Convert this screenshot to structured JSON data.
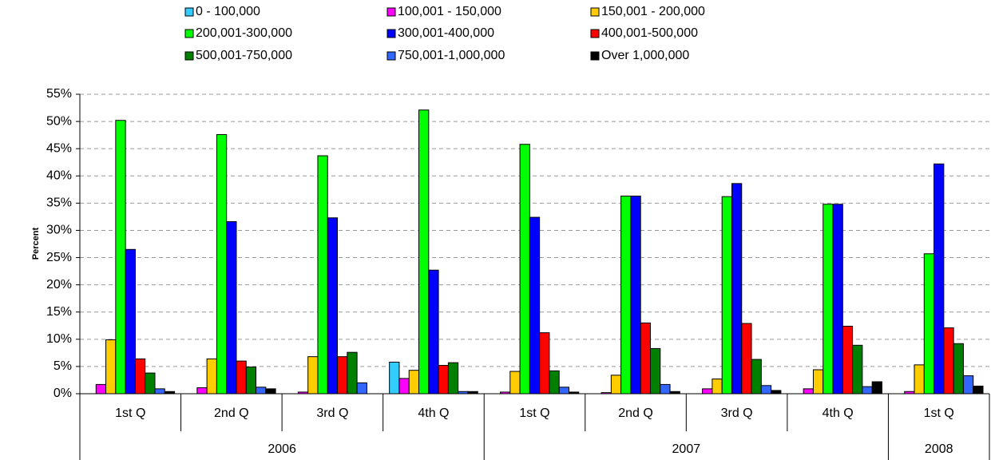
{
  "chart_data": {
    "type": "bar",
    "y_label": "Percent",
    "categories": [
      "1st Q",
      "2nd Q",
      "3rd Q",
      "4th Q",
      "1st Q",
      "2nd Q",
      "3rd Q",
      "4th Q",
      "1st Q"
    ],
    "category_groups": [
      "2006",
      "2006",
      "2006",
      "2006",
      "2007",
      "2007",
      "2007",
      "2007",
      "2008"
    ],
    "ylim": [
      0,
      55
    ],
    "yticks": [
      {
        "value": 0,
        "label": "0%"
      },
      {
        "value": 5,
        "label": "5%"
      },
      {
        "value": 10,
        "label": "10%"
      },
      {
        "value": 15,
        "label": "15%"
      },
      {
        "value": 20,
        "label": "20%"
      },
      {
        "value": 25,
        "label": "25%"
      },
      {
        "value": 30,
        "label": "30%"
      },
      {
        "value": 35,
        "label": "35%"
      },
      {
        "value": 40,
        "label": "40%"
      },
      {
        "value": 45,
        "label": "45%"
      },
      {
        "value": 50,
        "label": "50%"
      },
      {
        "value": 55,
        "label": "55%"
      }
    ],
    "grid": true,
    "legend": "top",
    "series": [
      {
        "name": "0 - 100,000",
        "color": "#33CCFF",
        "values": [
          0,
          0,
          0,
          5.8,
          0,
          0,
          0,
          0,
          0
        ]
      },
      {
        "name": "100,001 - 150,000",
        "color": "#FF00FF",
        "values": [
          1.7,
          1.1,
          0.3,
          2.8,
          0.3,
          0.2,
          0.9,
          0.9,
          0.4
        ]
      },
      {
        "name": "150,001 - 200,000",
        "color": "#FFCC00",
        "values": [
          9.9,
          6.4,
          6.8,
          4.3,
          4.1,
          3.4,
          2.7,
          4.4,
          5.3
        ]
      },
      {
        "name": "200,001-300,000",
        "color": "#00FF00",
        "values": [
          50.2,
          47.6,
          43.7,
          52.1,
          45.8,
          36.3,
          36.2,
          34.8,
          25.7
        ]
      },
      {
        "name": "300,001-400,000",
        "color": "#0000FF",
        "values": [
          26.5,
          31.6,
          32.3,
          22.7,
          32.4,
          36.3,
          38.6,
          34.8,
          42.2
        ]
      },
      {
        "name": "400,001-500,000",
        "color": "#FF0000",
        "values": [
          6.4,
          6.0,
          6.8,
          5.2,
          11.2,
          13.0,
          12.9,
          12.4,
          12.1
        ]
      },
      {
        "name": "500,001-750,000",
        "color": "#008000",
        "values": [
          3.8,
          4.9,
          7.6,
          5.7,
          4.2,
          8.3,
          6.3,
          8.9,
          9.2
        ]
      },
      {
        "name": "750,001-1,000,000",
        "color": "#3366FF",
        "values": [
          0.9,
          1.2,
          2.0,
          0.4,
          1.2,
          1.7,
          1.5,
          1.3,
          3.3
        ]
      },
      {
        "name": "Over 1,000,000",
        "color": "#000000",
        "values": [
          0.4,
          0.9,
          0,
          0.4,
          0.3,
          0.4,
          0.6,
          2.2,
          1.4
        ]
      }
    ]
  }
}
